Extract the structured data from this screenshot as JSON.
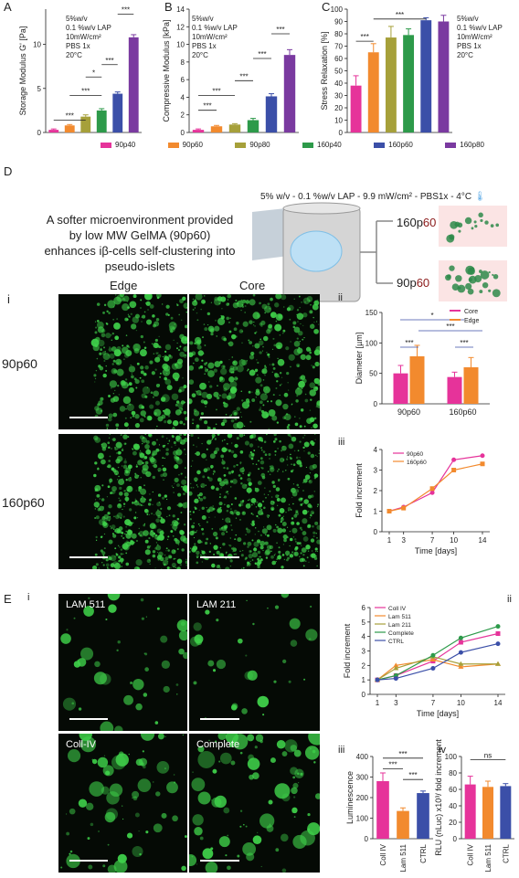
{
  "panels": {
    "A": "A",
    "B": "B",
    "C": "C",
    "D": "D",
    "E": "E",
    "i": "i",
    "ii": "ii",
    "iii": "iii",
    "iv": "iv"
  },
  "conditions_text": {
    "abc": [
      "5%w/v",
      "0.1 %w/v LAP",
      "10mW/cm²",
      "PBS 1x",
      "20°C"
    ],
    "d": "5% w/v - 0.1 %w/v LAP - 9.9 mW/cm² - PBS1x -  4°C"
  },
  "legend_main": [
    "90p40",
    "90p60",
    "90p80",
    "160p40",
    "160p60",
    "160p80"
  ],
  "colors": {
    "magenta": "#e6339a",
    "orange": "#f28a2e",
    "olive": "#a6a03a",
    "green": "#2d9a4a",
    "blue": "#3b4fa8",
    "purple": "#7a3aa0",
    "core": "#e6339a",
    "edge": "#f28a2e",
    "fluor": "#3fd14a"
  },
  "chart_data": [
    {
      "id": "A",
      "type": "bar",
      "ylabel": "Storage Modulus G' [Pa]",
      "ylim": [
        0,
        14
      ],
      "yticks": [
        0,
        5,
        10
      ],
      "categories": [
        "90p40",
        "90p60",
        "90p80",
        "160p40",
        "160p60",
        "160p80"
      ],
      "values": [
        0.3,
        0.8,
        1.8,
        2.5,
        4.4,
        10.8
      ],
      "errors": [
        0.1,
        0.1,
        0.2,
        0.2,
        0.2,
        0.3
      ],
      "sig": [
        [
          "***",
          0,
          2,
          0.9
        ],
        [
          "***",
          1,
          3,
          0.7
        ],
        [
          "*",
          2,
          3,
          0.55
        ],
        [
          "***",
          3,
          4,
          0.45
        ],
        [
          "***",
          4,
          5,
          0.04
        ]
      ]
    },
    {
      "id": "B",
      "type": "bar",
      "ylabel": "Compressive Modulus [kPa]",
      "ylim": [
        0,
        14
      ],
      "yticks": [
        0,
        2,
        4,
        6,
        8,
        10,
        12,
        14
      ],
      "categories": [
        "90p40",
        "90p60",
        "90p80",
        "160p40",
        "160p60",
        "160p80"
      ],
      "values": [
        0.3,
        0.7,
        0.9,
        1.4,
        4.1,
        8.8
      ],
      "errors": [
        0.1,
        0.1,
        0.1,
        0.2,
        0.3,
        0.6
      ],
      "sig": [
        [
          "***",
          0,
          1,
          0.82
        ],
        [
          "***",
          0,
          2,
          0.7
        ],
        [
          "***",
          2,
          3,
          0.58
        ],
        [
          "***",
          3,
          4,
          0.4
        ],
        [
          "***",
          4,
          5,
          0.2
        ]
      ]
    },
    {
      "id": "C",
      "type": "bar",
      "ylabel": "Stress Relaxation [%]",
      "ylim": [
        0,
        100
      ],
      "yticks": [
        0,
        10,
        20,
        30,
        40,
        50,
        60,
        70,
        80,
        90,
        100
      ],
      "categories": [
        "90p40",
        "90p60",
        "90p80",
        "160p40",
        "160p60",
        "160p80"
      ],
      "values": [
        38,
        65,
        77,
        79,
        91,
        90
      ],
      "errors": [
        8,
        7,
        9,
        5,
        2,
        5
      ],
      "sig": [
        [
          "***",
          0,
          1,
          0.26
        ],
        [
          "***",
          1,
          4,
          0.08
        ]
      ]
    },
    {
      "id": "Dii",
      "type": "bar",
      "ylabel": "Diameter [µm]",
      "ylim": [
        0,
        150
      ],
      "yticks": [
        0,
        50,
        100,
        150
      ],
      "categories": [
        "90p60",
        "160p60"
      ],
      "series": [
        {
          "name": "Core",
          "values": [
            50,
            44
          ],
          "errors": [
            13,
            8
          ]
        },
        {
          "name": "Edge",
          "values": [
            78,
            60
          ],
          "errors": [
            18,
            16
          ]
        }
      ],
      "sig": [
        "*",
        "***",
        "***",
        "***"
      ]
    },
    {
      "id": "Diii",
      "type": "line",
      "xlabel": "Time [days]",
      "ylabel": "Fold increment",
      "xticks": [
        1,
        3,
        7,
        10,
        14
      ],
      "ylim": [
        0,
        4
      ],
      "yticks": [
        0,
        1,
        2,
        3,
        4
      ],
      "series": [
        {
          "name": "90p60",
          "values": [
            1.0,
            1.2,
            1.9,
            3.5,
            3.7
          ]
        },
        {
          "name": "160p60",
          "values": [
            1.0,
            1.15,
            2.1,
            3.0,
            3.3
          ]
        }
      ]
    },
    {
      "id": "Eii",
      "type": "line",
      "xlabel": "Time [days]",
      "ylabel": "Fold increment",
      "xticks": [
        1,
        3,
        7,
        10,
        14
      ],
      "ylim": [
        0,
        6
      ],
      "yticks": [
        0,
        1,
        2,
        3,
        4,
        5,
        6
      ],
      "series": [
        {
          "name": "Coll IV",
          "values": [
            1.0,
            1.3,
            2.3,
            3.6,
            4.2
          ]
        },
        {
          "name": "Lam 511",
          "values": [
            1.0,
            2.0,
            2.4,
            1.9,
            2.1
          ]
        },
        {
          "name": "Lam 211",
          "values": [
            1.0,
            1.8,
            2.6,
            2.1,
            2.1
          ]
        },
        {
          "name": "Complete",
          "values": [
            1.0,
            1.3,
            2.7,
            3.9,
            4.7
          ]
        },
        {
          "name": "CTRL",
          "values": [
            1.0,
            1.1,
            1.8,
            2.9,
            3.5
          ]
        }
      ]
    },
    {
      "id": "Eiii",
      "type": "bar",
      "ylabel": "Luminescence",
      "ylim": [
        0,
        400
      ],
      "yticks": [
        0,
        100,
        200,
        300,
        400
      ],
      "categories": [
        "Coll IV",
        "Lam 511",
        "CTRL"
      ],
      "values": [
        280,
        135,
        222
      ],
      "errors": [
        40,
        15,
        10
      ],
      "sig": [
        "***",
        "***",
        "***"
      ]
    },
    {
      "id": "Eiv",
      "type": "bar",
      "ylabel": "RLU (nLuc) x10³/ fold increment",
      "ylim": [
        0,
        100
      ],
      "yticks": [
        0,
        20,
        40,
        60,
        80,
        100
      ],
      "categories": [
        "Coll IV",
        "Lam 511",
        "CTRL"
      ],
      "values": [
        66,
        63,
        64
      ],
      "errors": [
        10,
        7,
        3
      ],
      "sig": [
        "ns"
      ]
    }
  ],
  "d_panel": {
    "description": "A softer microenvironment provided by low MW GelMA (90p60) enhances iβ-cells self-clustering into pseudo-islets",
    "label_160": "160p",
    "label_90": "90p",
    "label_suffix": "60"
  },
  "microscopy_d": {
    "cols": [
      "Edge",
      "Core"
    ],
    "rows": [
      "90p60",
      "160p60"
    ]
  },
  "microscopy_e": {
    "labels": [
      "LAM 511",
      "LAM 211",
      "Coll-IV",
      "Complete"
    ]
  }
}
